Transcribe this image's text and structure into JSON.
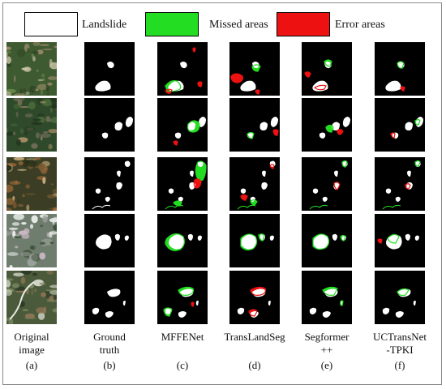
{
  "legend": [
    {
      "label": "Landslide",
      "color": "#ffffff"
    },
    {
      "label": "Missed areas",
      "color": "#22dd22"
    },
    {
      "label": "Error areas",
      "color": "#ee1111"
    }
  ],
  "columns": [
    {
      "name": "Original\nimage",
      "letter": "(a)"
    },
    {
      "name": "Ground\ntruth",
      "letter": "(b)"
    },
    {
      "name": "MFFENet",
      "letter": "(c)"
    },
    {
      "name": "TransLandSeg",
      "letter": "(d)"
    },
    {
      "name": "Segformer\n++",
      "letter": "(e)"
    },
    {
      "name": "UCTransNet\n-TPKI",
      "letter": "(f)"
    }
  ],
  "colors": {
    "landslide": "#ffffff",
    "missed": "#22dd22",
    "error": "#ee1111",
    "background": "#000000"
  },
  "row_count": 5
}
